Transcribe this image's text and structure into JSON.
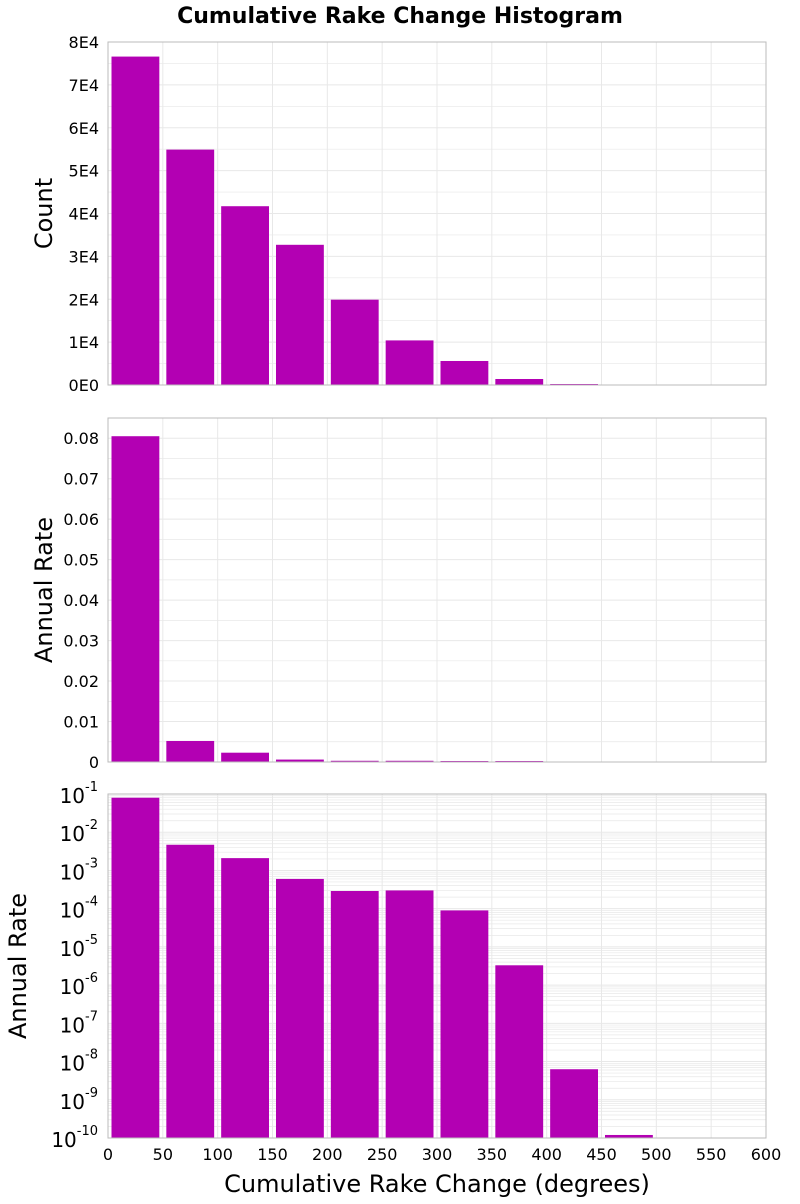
{
  "title": "Cumulative Rake Change Histogram",
  "colors": {
    "bar": "#B300B3",
    "grid": "#E8E8E8",
    "frame": "#BBBBBB",
    "background": "#FFFFFF"
  },
  "chart_data": [
    {
      "type": "bar",
      "ylabel": "Count",
      "x_bin_starts": [
        0,
        50,
        100,
        150,
        200,
        250,
        300,
        350,
        400,
        450,
        500,
        550
      ],
      "bin_width": 50,
      "values": [
        76600,
        54900,
        41700,
        32700,
        19900,
        10400,
        5600,
        1400,
        110,
        0,
        0,
        0
      ],
      "ylim": [
        0,
        80000
      ],
      "yticks": [
        0,
        10000,
        20000,
        30000,
        40000,
        50000,
        60000,
        70000,
        80000
      ],
      "ytick_labels": [
        "0E0",
        "1E4",
        "2E4",
        "3E4",
        "4E4",
        "5E4",
        "6E4",
        "7E4",
        "8E4"
      ],
      "xlim": [
        0,
        600
      ],
      "grid": true,
      "yscale": "linear"
    },
    {
      "type": "bar",
      "ylabel": "Annual Rate",
      "x_bin_starts": [
        0,
        50,
        100,
        150,
        200,
        250,
        300,
        350,
        400,
        450,
        500,
        550
      ],
      "bin_width": 50,
      "values": [
        0.0805,
        0.0052,
        0.0023,
        0.0006,
        0.0003,
        0.0003,
        0.0001,
        3.3e-06,
        0,
        0,
        0,
        0
      ],
      "ylim": [
        0,
        0.085
      ],
      "yticks": [
        0,
        0.01,
        0.02,
        0.03,
        0.04,
        0.05,
        0.06,
        0.07,
        0.08
      ],
      "ytick_labels": [
        "0",
        "0.01",
        "0.02",
        "0.03",
        "0.04",
        "0.05",
        "0.06",
        "0.07",
        "0.08"
      ],
      "xlim": [
        0,
        600
      ],
      "grid": true,
      "yscale": "linear"
    },
    {
      "type": "bar",
      "ylabel": "Annual Rate",
      "xlabel": "Cumulative Rake Change (degrees)",
      "x_bin_starts": [
        0,
        50,
        100,
        150,
        200,
        250,
        300,
        350,
        400,
        450,
        500,
        550
      ],
      "bin_width": 50,
      "values": [
        0.08,
        0.0047,
        0.0021,
        0.0006,
        0.00029,
        0.0003,
        9e-05,
        3.3e-06,
        6.3e-09,
        1.2e-10,
        0,
        0
      ],
      "ylim": [
        1e-10,
        0.1
      ],
      "yscale": "log",
      "ytick_exponents": [
        -1,
        -2,
        -3,
        -4,
        -5,
        -6,
        -7,
        -8,
        -9,
        -10
      ],
      "ytick_base": "10",
      "xlim": [
        0,
        600
      ],
      "xticks": [
        "0",
        "50",
        "100",
        "150",
        "200",
        "250",
        "300",
        "350",
        "400",
        "450",
        "500",
        "550",
        "600"
      ],
      "grid": true
    }
  ]
}
